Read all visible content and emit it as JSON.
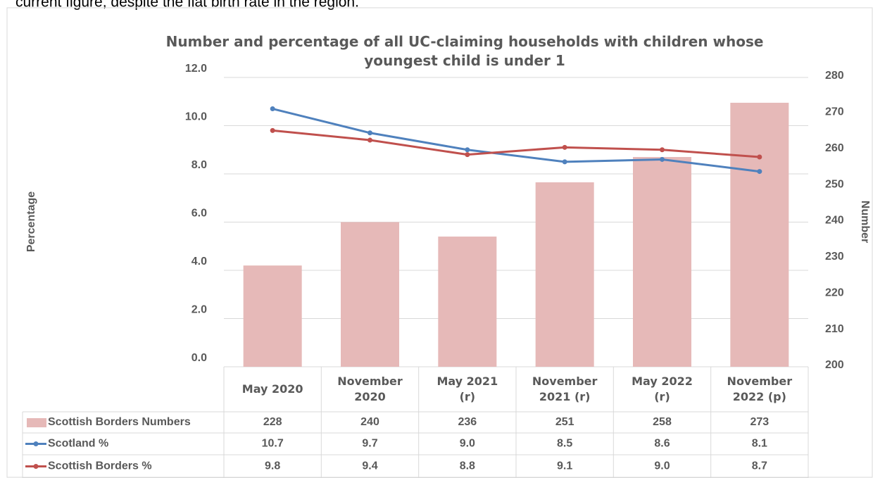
{
  "intro_text": "current figure, despite the flat birth rate in the region.",
  "chart_data": {
    "type": "bar",
    "title": "Number and percentage of all UC-claiming households with children whose youngest child is under 1",
    "y_label": "Percentage",
    "y2_label": "Number",
    "categories": [
      "May 2020",
      "November 2020",
      "May 2021 (r)",
      "November 2021 (r)",
      "May 2022 (r)",
      "November 2022 (p)"
    ],
    "ylim": [
      0,
      12
    ],
    "yticks": [
      {
        "value": 0,
        "label": "0.0"
      },
      {
        "value": 2,
        "label": "2.0"
      },
      {
        "value": 4,
        "label": "4.0"
      },
      {
        "value": 6,
        "label": "6.0"
      },
      {
        "value": 8,
        "label": "8.0"
      },
      {
        "value": 10,
        "label": "10.0"
      },
      {
        "value": 12,
        "label": "12.0"
      }
    ],
    "y2lim": [
      200,
      280
    ],
    "y2ticks": [
      200,
      210,
      220,
      230,
      240,
      250,
      260,
      270,
      280
    ],
    "grid": true,
    "series": [
      {
        "name": "Scottish Borders Numbers",
        "type": "bar",
        "axis": "y2",
        "color": "#e6b9b8",
        "values": [
          228,
          240,
          236,
          251,
          258,
          273
        ]
      },
      {
        "name": "Scotland %",
        "type": "line",
        "color": "#4f81bd",
        "values": [
          10.7,
          9.7,
          9.0,
          8.5,
          8.6,
          8.1
        ],
        "value_labels": [
          "10.7",
          "9.7",
          "9.0",
          "8.5",
          "8.6",
          "8.1"
        ]
      },
      {
        "name": "Scottish Borders %",
        "type": "line",
        "color": "#c0504d",
        "values": [
          9.8,
          9.4,
          8.8,
          9.1,
          9.0,
          8.7
        ],
        "value_labels": [
          "9.8",
          "9.4",
          "8.8",
          "9.1",
          "9.0",
          "8.7"
        ]
      }
    ]
  }
}
